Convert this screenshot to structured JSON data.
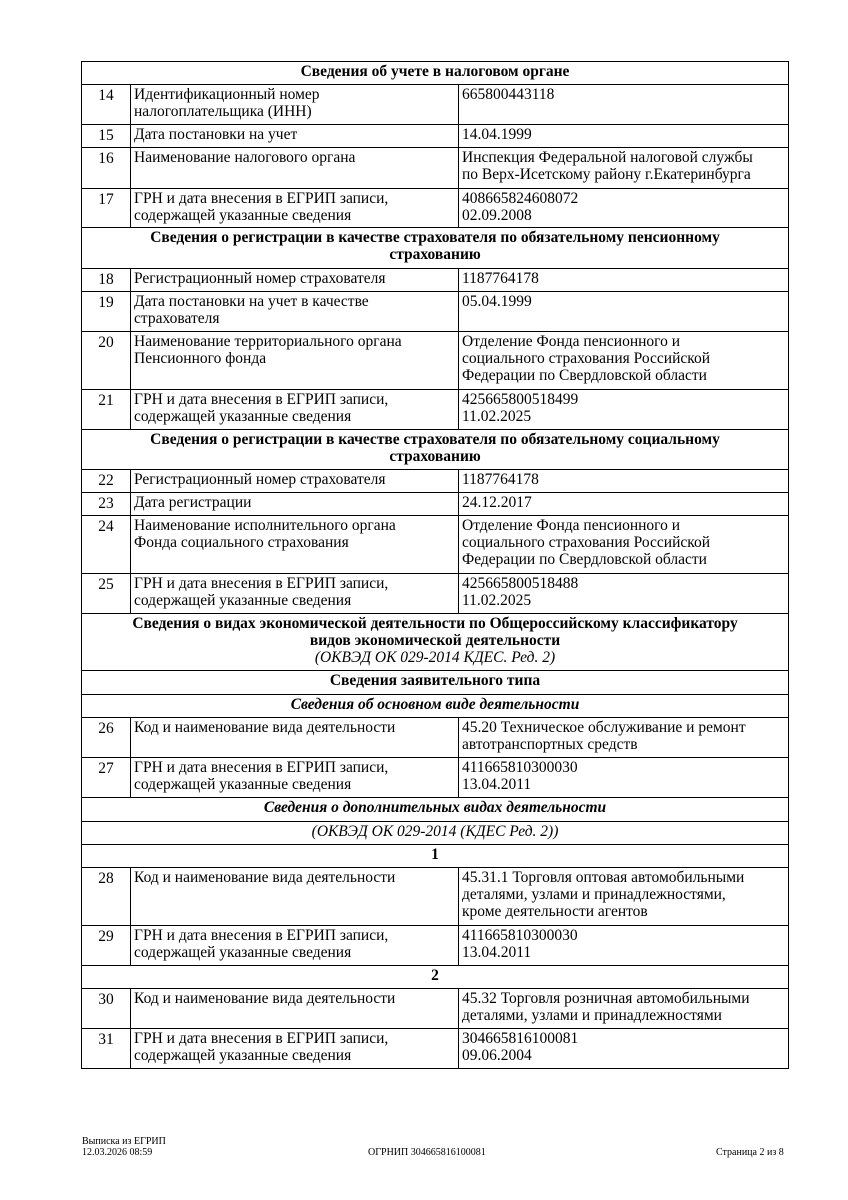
{
  "rows": [
    {
      "type": "sec",
      "text": "Сведения об учете в налоговом органе",
      "h": 23
    },
    {
      "type": "row",
      "num": "14",
      "label": "Идентификационный номер\nналогоплательщика (ИНН)",
      "value": "665800443118",
      "h": 40
    },
    {
      "type": "row",
      "num": "15",
      "label": "Дата постановки на учет",
      "value": "14.04.1999",
      "h": 23
    },
    {
      "type": "row",
      "num": "16",
      "label": "Наименование налогового органа",
      "value": "Инспекция Федеральной налоговой службы\nпо Верх-Исетскому району г.Екатеринбурга",
      "h": 41
    },
    {
      "type": "row",
      "num": "17",
      "label": "ГРН и дата внесения в ЕГРИП записи,\nсодержащей указанные сведения",
      "value": "408665824608072\n02.09.2008",
      "h": 39
    },
    {
      "type": "sec",
      "text": "Сведения о регистрации в качестве страхователя по обязательному пенсионному\nстрахованию",
      "h": 41
    },
    {
      "type": "row",
      "num": "18",
      "label": "Регистрационный номер страхователя",
      "value": "1187764178",
      "h": 23
    },
    {
      "type": "row",
      "num": "19",
      "label": "Дата постановки на учет в качестве\nстрахователя",
      "value": "05.04.1999",
      "h": 40
    },
    {
      "type": "row",
      "num": "20",
      "label": "Наименование территориального органа\nПенсионного фонда",
      "value": "Отделение Фонда пенсионного и\nсоциального страхования Российской\nФедерации по Свердловской области",
      "h": 58
    },
    {
      "type": "row",
      "num": "21",
      "label": "ГРН и дата внесения в ЕГРИП записи,\nсодержащей указанные сведения",
      "value": "425665800518499\n11.02.2025",
      "h": 40
    },
    {
      "type": "sec",
      "text": "Сведения о регистрации в качестве страхователя по обязательному социальному\nстрахованию",
      "h": 40
    },
    {
      "type": "row",
      "num": "22",
      "label": "Регистрационный номер страхователя",
      "value": "1187764178",
      "h": 23
    },
    {
      "type": "row",
      "num": "23",
      "label": "Дата регистрации",
      "value": "24.12.2017",
      "h": 23
    },
    {
      "type": "row",
      "num": "24",
      "label": "Наименование исполнительного органа\nФонда социального страхования",
      "value": "Отделение Фонда пенсионного и\nсоциального страхования Российской\nФедерации по Свердловской области",
      "h": 58
    },
    {
      "type": "row",
      "num": "25",
      "label": "ГРН и дата внесения в ЕГРИП записи,\nсодержащей указанные сведения",
      "value": "425665800518488\n11.02.2025",
      "h": 40
    },
    {
      "type": "sec",
      "text": "Сведения о видах экономической деятельности по Общероссийскому классификатору\nвидов экономической деятельности",
      "note": "(ОКВЭД ОК 029-2014 КДЕС. Ред. 2)",
      "h": 57
    },
    {
      "type": "sec",
      "text": "Сведения заявительного типа",
      "h": 24
    },
    {
      "type": "sub",
      "text": "Сведения об основном виде деятельности",
      "h": 23
    },
    {
      "type": "row",
      "num": "26",
      "label": "Код и наименование вида деятельности",
      "value": "45.20 Техническое обслуживание и ремонт\nавтотранспортных средств",
      "h": 40
    },
    {
      "type": "row",
      "num": "27",
      "label": "ГРН и дата внесения в ЕГРИП записи,\nсодержащей указанные сведения",
      "value": "411665810300030\n13.04.2011",
      "h": 40
    },
    {
      "type": "sub",
      "text": "Сведения о дополнительных видах деятельности",
      "h": 24
    },
    {
      "type": "ital",
      "text": "(ОКВЭД ОК 029-2014 (КДЕС Ред. 2))",
      "h": 23
    },
    {
      "type": "sec",
      "text": "1",
      "h": 23
    },
    {
      "type": "row",
      "num": "28",
      "label": "Код и наименование вида деятельности",
      "value": "45.31.1 Торговля оптовая автомобильными\nдеталями, узлами и принадлежностями,\nкроме деятельности агентов",
      "h": 58
    },
    {
      "type": "row",
      "num": "29",
      "label": "ГРН и дата внесения в ЕГРИП записи,\nсодержащей указанные сведения",
      "value": "411665810300030\n13.04.2011",
      "h": 40
    },
    {
      "type": "sec",
      "text": "2",
      "h": 23
    },
    {
      "type": "row",
      "num": "30",
      "label": "Код и наименование вида деятельности",
      "value": "45.32 Торговля розничная автомобильными\nдеталями, узлами и принадлежностями",
      "h": 40
    },
    {
      "type": "row",
      "num": "31",
      "label": "ГРН и дата внесения в ЕГРИП записи,\nсодержащей указанные сведения",
      "value": "304665816100081\n09.06.2004",
      "h": 40
    }
  ],
  "footer": {
    "doc_title": "Выписка из ЕГРИП",
    "datetime": "12.03.2026 08:59",
    "ogrnip": "ОГРНИП 304665816100081",
    "page": "Страница 2 из 8"
  }
}
